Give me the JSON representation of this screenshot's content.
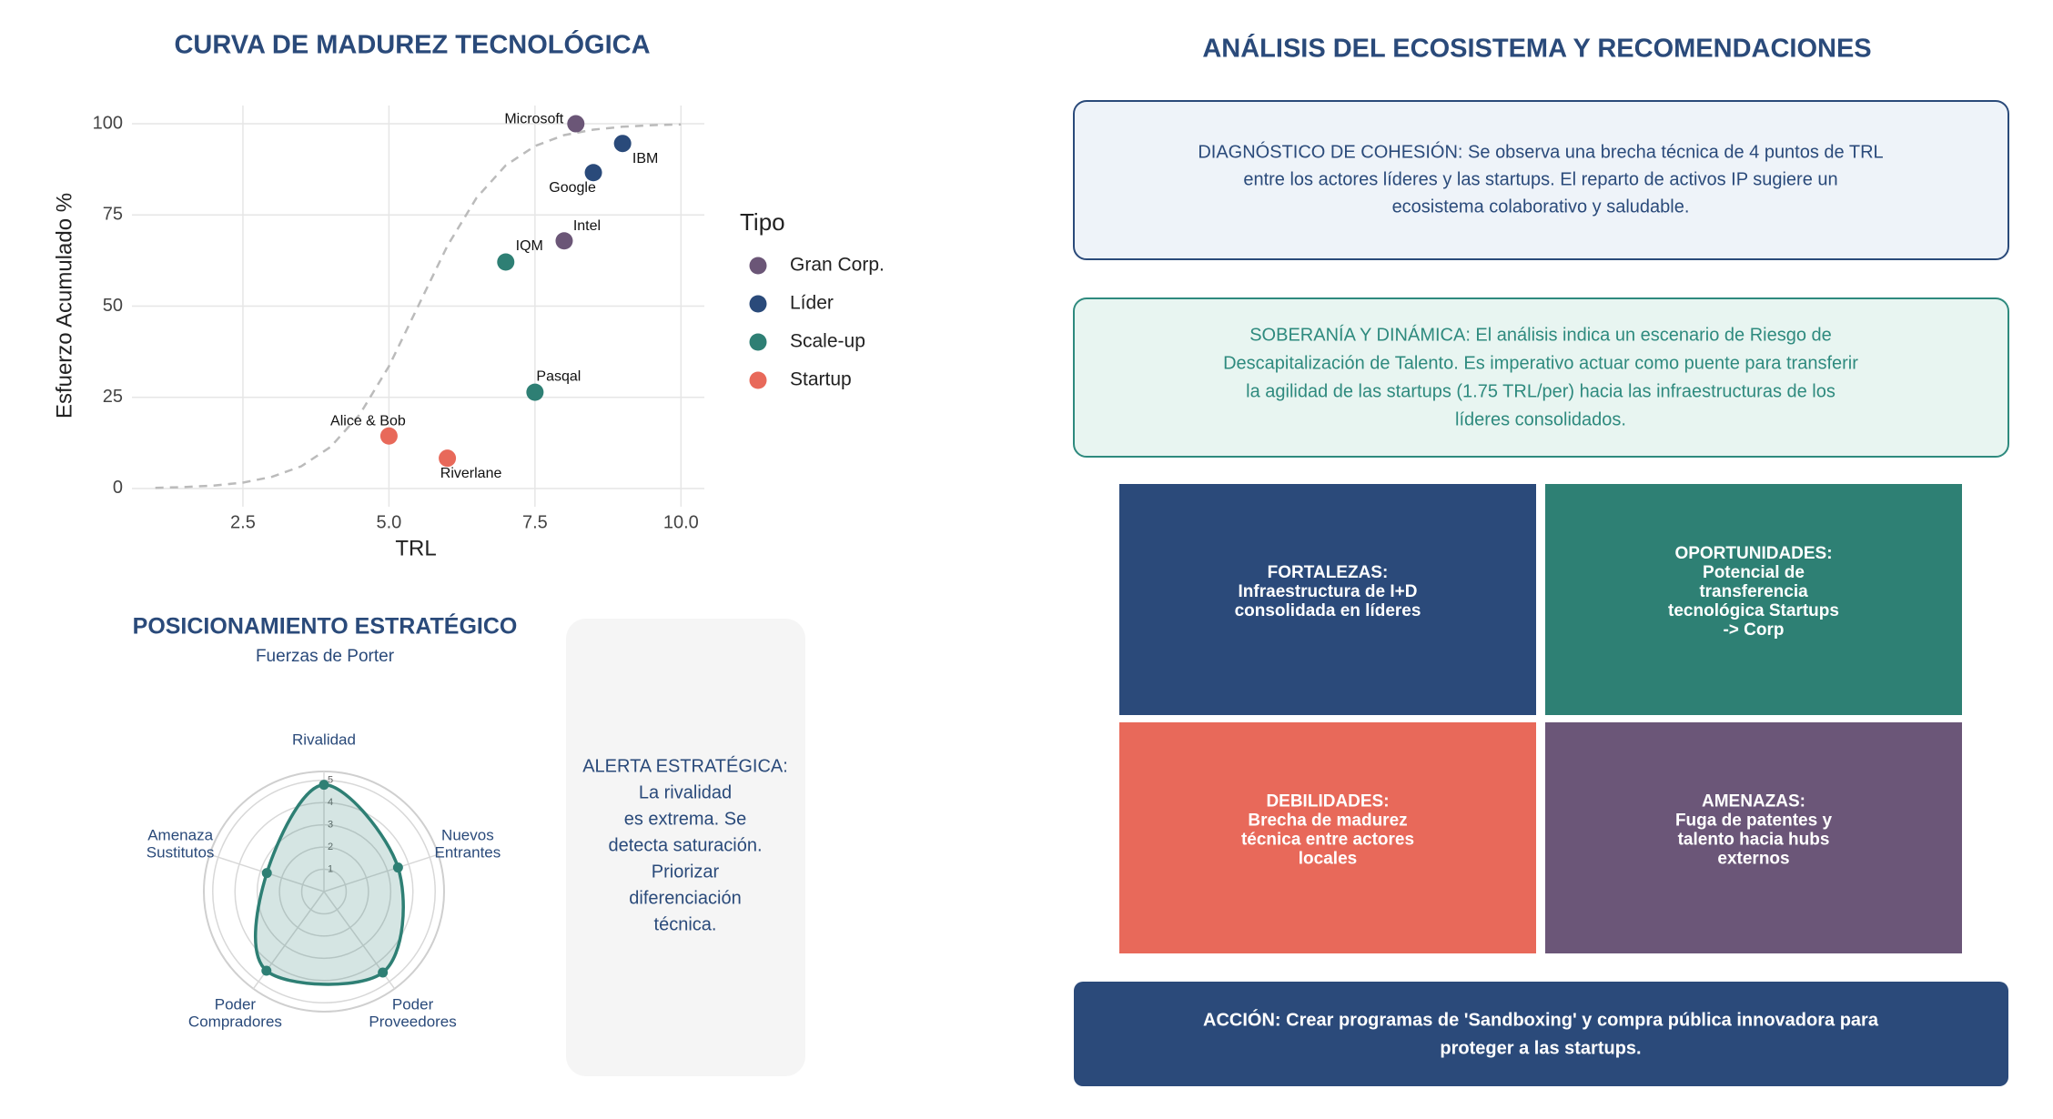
{
  "chart_data": [
    {
      "type": "scatter",
      "title": "CURVA DE MADUREZ TECNOLÓGICA",
      "x_label": "TRL",
      "y_label": "Esfuerzo Acumulado %",
      "xlim": [
        0.6,
        10.4
      ],
      "ylim": [
        -5,
        105
      ],
      "xticks": [
        2.5,
        {
          "value": 5,
          "label": "5.0"
        },
        7.5,
        {
          "value": 10,
          "label": "10.0"
        }
      ],
      "yticks": [
        0,
        25,
        50,
        75,
        100
      ],
      "grid": true,
      "legend_title": "Tipo",
      "legend_position": "right",
      "series": [
        {
          "name": "Gran Corp.",
          "color": "#6b5677",
          "labels": [
            "Microsoft",
            "Intel"
          ],
          "x": [
            8.2,
            8.0
          ],
          "y": [
            100,
            67.9
          ]
        },
        {
          "name": "Líder",
          "color": "#2a4a7a",
          "labels": [
            "IBM",
            "Google"
          ],
          "x": [
            9.0,
            8.5
          ],
          "y": [
            94.6,
            86.6
          ]
        },
        {
          "name": "Scale-up",
          "color": "#2e7f74",
          "labels": [
            "IQM",
            "Pasqal"
          ],
          "x": [
            7.0,
            7.5
          ],
          "y": [
            62.1,
            26.4
          ]
        },
        {
          "name": "Startup",
          "color": "#e8695a",
          "labels": [
            "Alice & Bob",
            "Riverlane"
          ],
          "x": [
            5.0,
            6.0
          ],
          "y": [
            14.4,
            8.3
          ]
        }
      ],
      "reference_curve": {
        "color": "#bbbbbb",
        "dashed": true,
        "x": [
          1,
          1.5,
          2,
          2.5,
          3,
          3.5,
          4,
          4.5,
          5,
          5.5,
          6,
          6.5,
          7,
          7.5,
          8,
          8.5,
          9,
          9.5,
          10
        ],
        "y": [
          0.2,
          0.4,
          0.8,
          1.6,
          3.2,
          6.1,
          11.4,
          20.3,
          33.5,
          50,
          66.5,
          79.7,
          88.6,
          93.9,
          96.9,
          98.4,
          99.2,
          99.6,
          99.8
        ]
      }
    },
    {
      "type": "radar",
      "title": "POSICIONAMIENTO ESTRATÉGICO",
      "subtitle": "Fuerzas de Porter",
      "categories": [
        [
          "Rivalidad"
        ],
        [
          "Nuevos",
          "Entrantes"
        ],
        [
          "Poder",
          "Proveedores"
        ],
        [
          "Poder",
          "Compradores"
        ],
        [
          "Amenaza",
          "Sustitutos"
        ]
      ],
      "values": [
        4.8,
        3.5,
        4.5,
        4.4,
        2.7
      ],
      "color": "#2e7f74",
      "rlim": [
        0,
        5.4
      ],
      "rticks": [
        1,
        2,
        3,
        4,
        5
      ]
    }
  ],
  "alert": {
    "lines": [
      "ALERTA ESTRATÉGICA:",
      "La rivalidad",
      "es extrema. Se",
      "detecta saturación.",
      "Priorizar",
      "diferenciación",
      "técnica."
    ]
  },
  "analysis": {
    "title": "ANÁLISIS DEL ECOSISTEMA Y RECOMENDACIONES",
    "diagnosis": {
      "lines": [
        "DIAGNÓSTICO DE COHESIÓN: Se observa una brecha técnica de 4 puntos de TRL",
        "entre los actores líderes y las startups. El reparto de activos IP sugiere un",
        "ecosistema colaborativo y saludable."
      ]
    },
    "sovereignty": {
      "lines": [
        "SOBERANÍA Y DINÁMICA: El análisis indica un escenario de Riesgo de",
        "Descapitalización de Talento. Es imperativo actuar como puente para transferir",
        "la agilidad de las startups (1.75 TRL/per) hacia las infraestructuras de los",
        "líderes consolidados."
      ]
    },
    "swot": [
      {
        "color": "#2b4a7a",
        "heading": "FORTALEZAS:",
        "lines": [
          "Infraestructura de I+D",
          "consolidada en líderes"
        ]
      },
      {
        "color": "#2e8074",
        "heading": "OPORTUNIDADES:",
        "lines": [
          "Potencial de",
          "transferencia",
          "tecnológica Startups",
          "-> Corp"
        ]
      },
      {
        "color": "#e8695a",
        "heading": "DEBILIDADES:",
        "lines": [
          "Brecha de madurez",
          "técnica entre actores",
          "locales"
        ]
      },
      {
        "color": "#6b5678",
        "heading": "AMENAZAS:",
        "lines": [
          "Fuga de patentes y",
          "talento hacia hubs",
          "externos"
        ]
      }
    ],
    "action": {
      "lines": [
        "ACCIÓN: Crear programas de 'Sandboxing' y compra pública innovadora para",
        "proteger a las startups."
      ]
    }
  }
}
